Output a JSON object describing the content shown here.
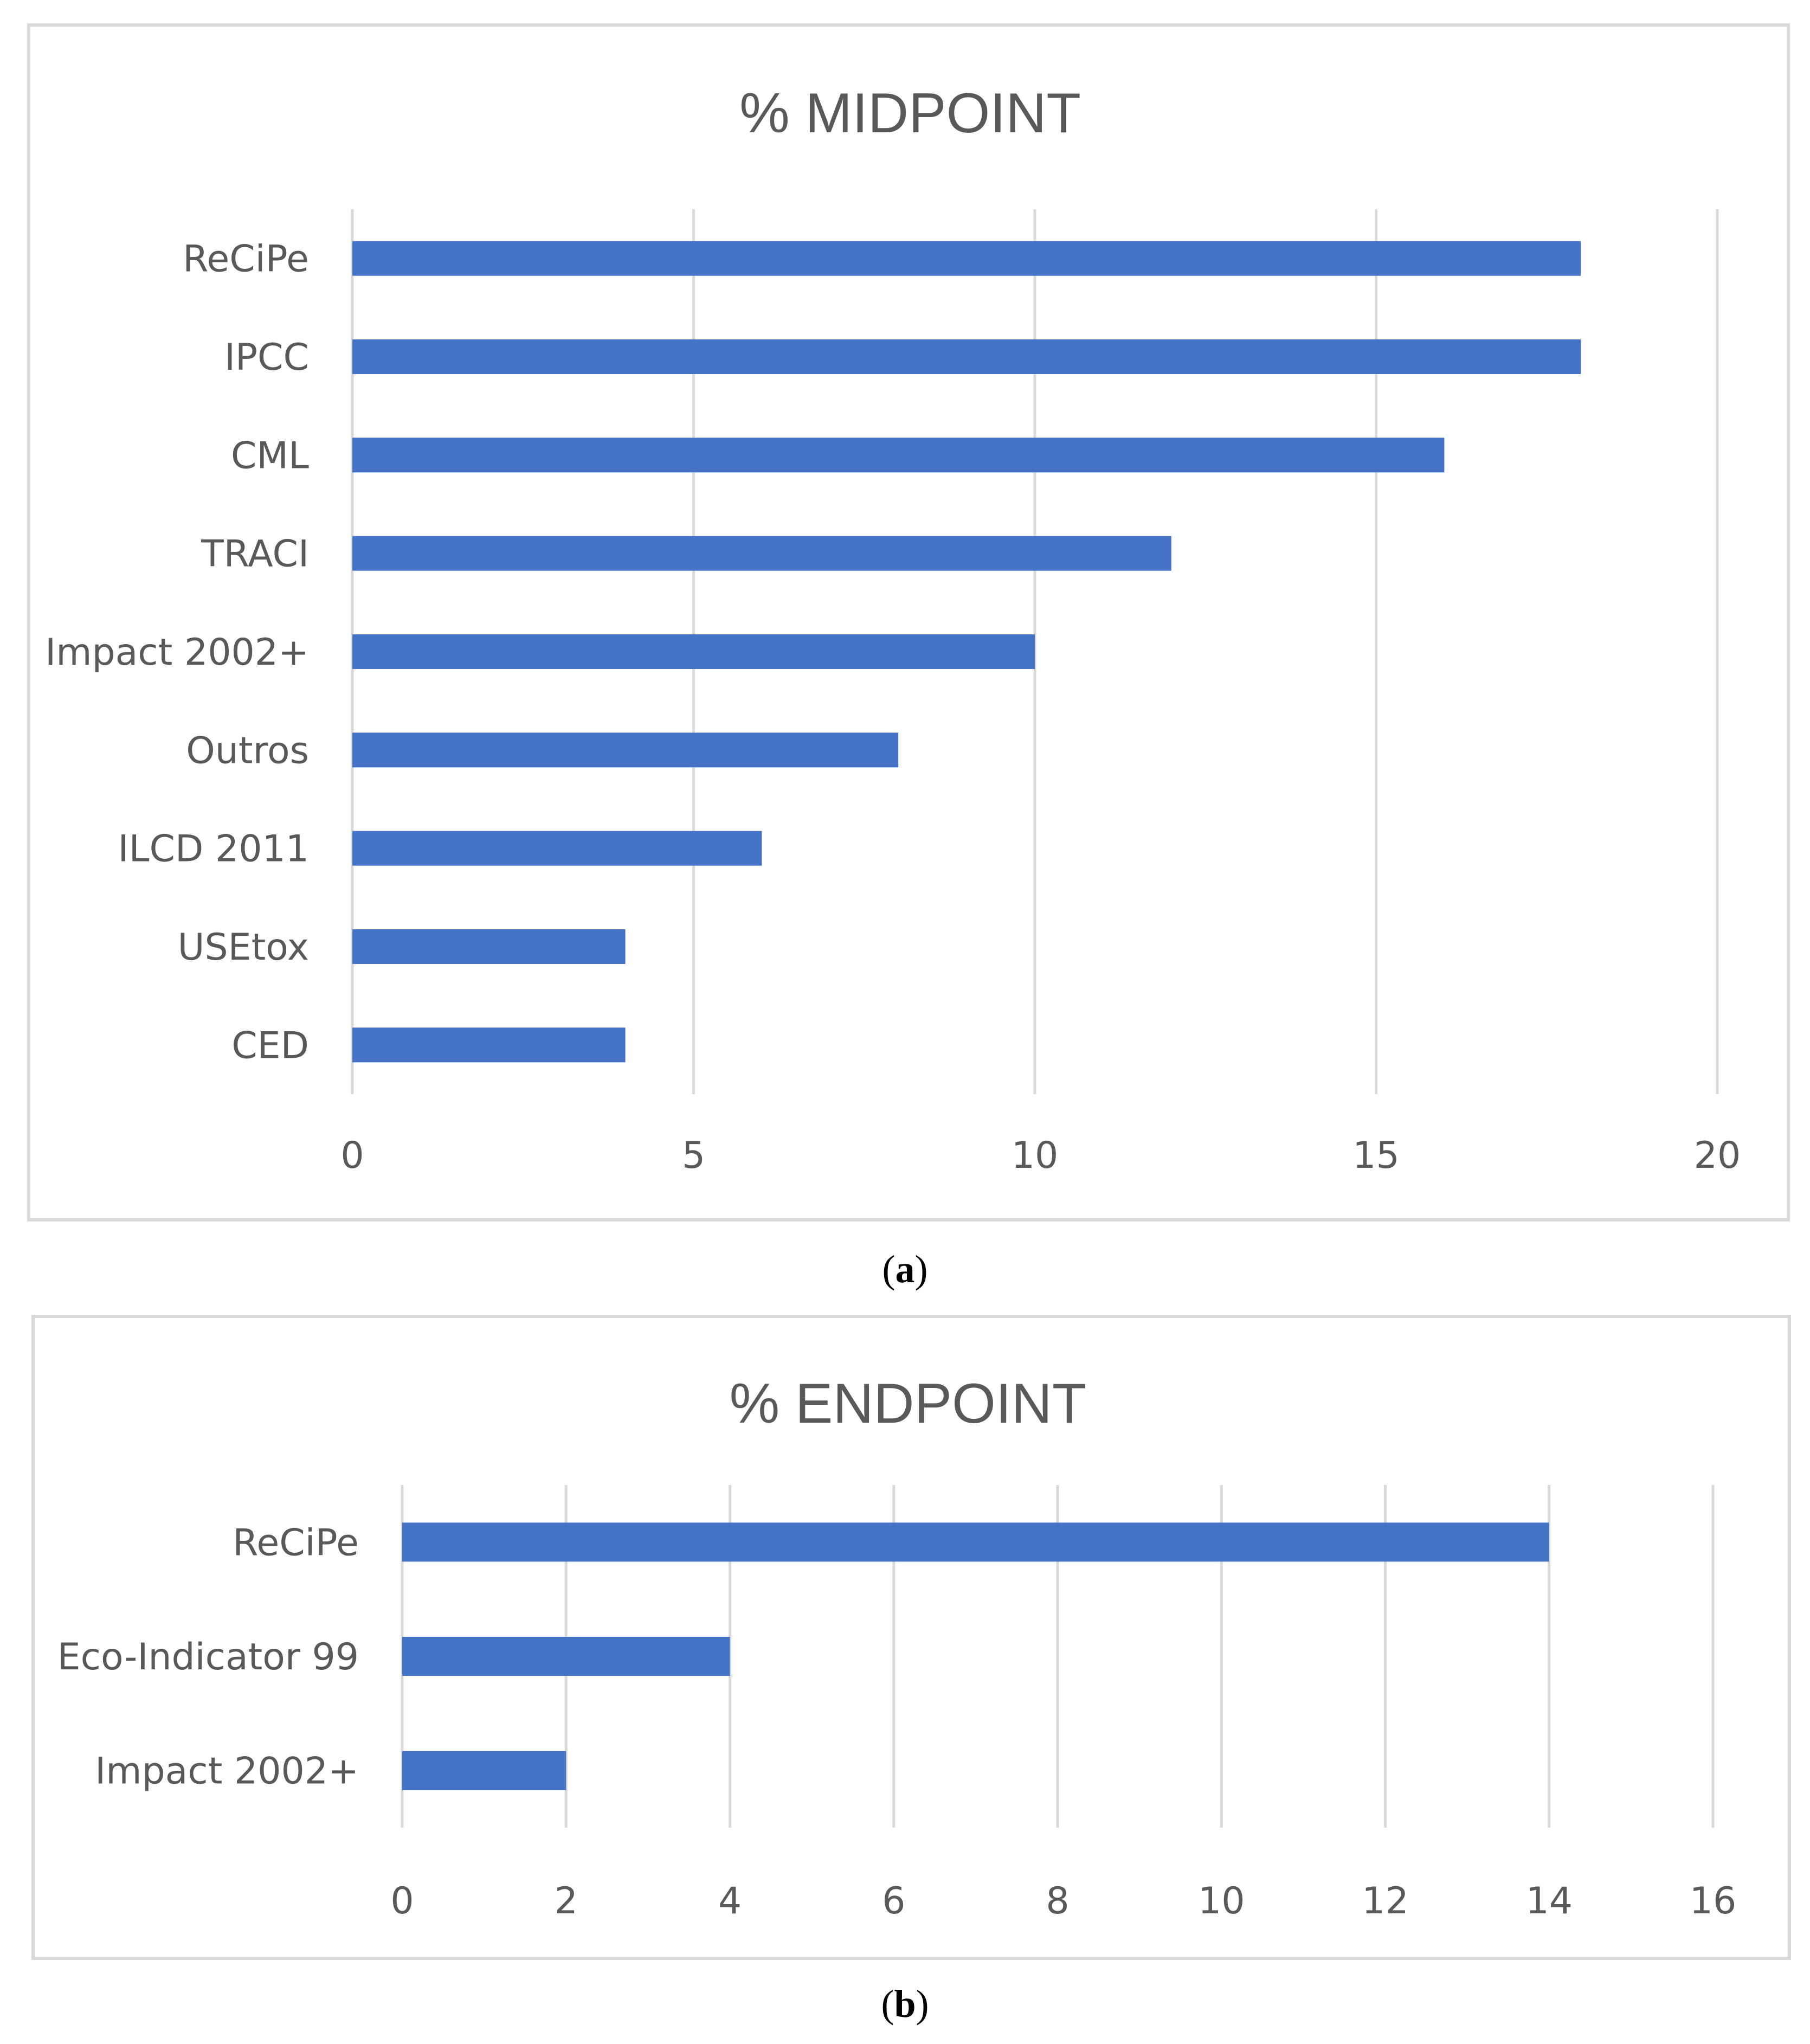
{
  "chart_data": [
    {
      "type": "bar",
      "orientation": "horizontal",
      "title": "% MIDPOINT",
      "categories": [
        "ReCiPe",
        "IPCC",
        "CML",
        "TRACI",
        "Impact 2002+",
        "Outros",
        "ILCD 2011",
        "USEtox",
        "CED"
      ],
      "values": [
        18,
        18,
        16,
        12,
        10,
        8,
        6,
        4,
        4
      ],
      "xlim": [
        0,
        20
      ],
      "ticks": [
        0,
        5,
        10,
        15,
        20
      ],
      "tick_labels": [
        "0",
        "5",
        "10",
        "15",
        "20"
      ],
      "xlabel": "",
      "ylabel": "",
      "grid": true,
      "bar_color": "#4472c4",
      "grid_color": "#d9d9d9",
      "caption_letter": "a"
    },
    {
      "type": "bar",
      "orientation": "horizontal",
      "title": "% ENDPOINT",
      "categories": [
        "ReCiPe",
        "Eco-Indicator 99",
        "Impact 2002+"
      ],
      "values": [
        14,
        4,
        2
      ],
      "xlim": [
        0,
        16
      ],
      "ticks": [
        0,
        2,
        4,
        6,
        8,
        10,
        12,
        14,
        16
      ],
      "tick_labels": [
        "0",
        "2",
        "4",
        "6",
        "8",
        "10",
        "12",
        "14",
        "16"
      ],
      "xlabel": "",
      "ylabel": "",
      "grid": true,
      "bar_color": "#4472c4",
      "grid_color": "#d9d9d9",
      "caption_letter": "b"
    }
  ]
}
